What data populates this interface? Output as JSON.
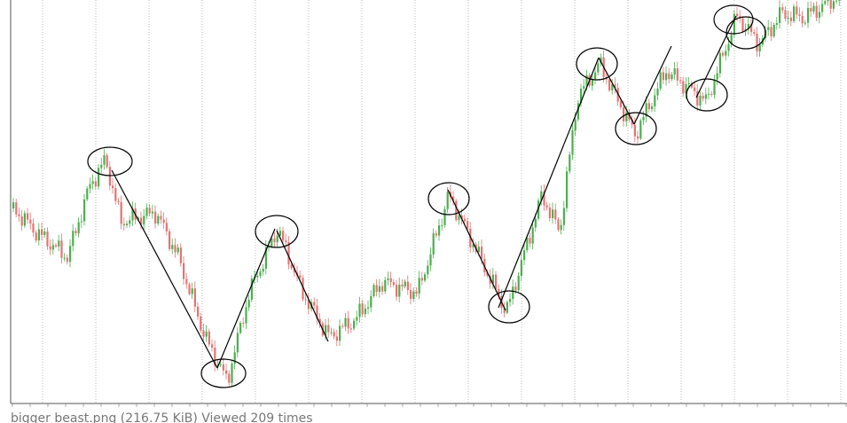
{
  "caption": "bigger beast.png (216.75 KiB) Viewed 209 times"
}
